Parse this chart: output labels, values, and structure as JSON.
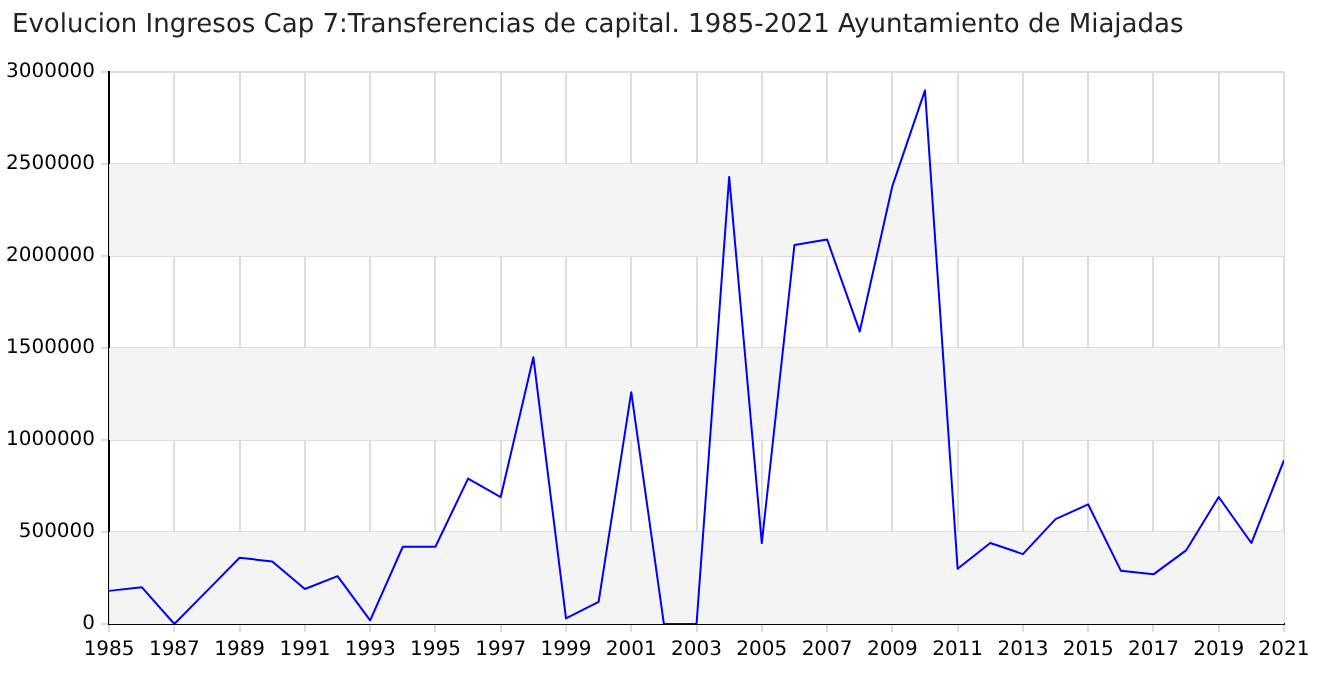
{
  "chart_data": {
    "type": "line",
    "title": "Evolucion Ingresos Cap 7:Transferencias de capital. 1985-2021 Ayuntamiento de Miajadas",
    "x": [
      1985,
      1986,
      1987,
      1988,
      1989,
      1990,
      1991,
      1992,
      1993,
      1994,
      1995,
      1996,
      1997,
      1998,
      1999,
      2000,
      2001,
      2002,
      2003,
      2004,
      2005,
      2006,
      2007,
      2008,
      2009,
      2010,
      2011,
      2012,
      2013,
      2014,
      2015,
      2016,
      2017,
      2018,
      2019,
      2020,
      2021
    ],
    "series": [
      {
        "color": "#0000ff",
        "values": [
          180000,
          200000,
          0,
          180000,
          360000,
          340000,
          190000,
          260000,
          20000,
          420000,
          420000,
          790000,
          690000,
          1450000,
          30000,
          120000,
          1260000,
          0,
          0,
          2430000,
          440000,
          2060000,
          2090000,
          1590000,
          2380000,
          2900000,
          300000,
          440000,
          380000,
          570000,
          650000,
          290000,
          270000,
          400000,
          690000,
          440000,
          890000
        ]
      }
    ],
    "xlim": [
      1985,
      2021
    ],
    "xticks": [
      1985,
      1987,
      1989,
      1991,
      1993,
      1995,
      1997,
      1999,
      2001,
      2003,
      2005,
      2007,
      2009,
      2011,
      2013,
      2015,
      2017,
      2019,
      2021
    ],
    "ylim": [
      0,
      3000000
    ],
    "yticks": [
      0,
      500000,
      1000000,
      1500000,
      2000000,
      2500000,
      3000000
    ],
    "grid": true,
    "legend": false,
    "marker": "none",
    "line_style": "solid"
  }
}
